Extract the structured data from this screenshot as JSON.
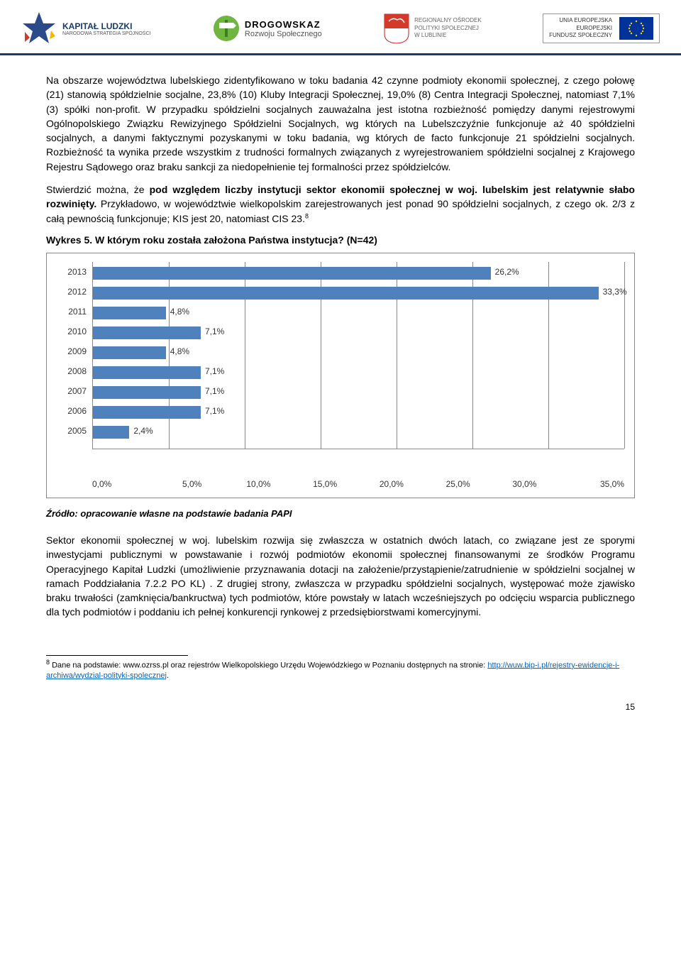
{
  "header": {
    "kapital_title": "KAPITAŁ LUDZKI",
    "kapital_sub": "NARODOWA STRATEGIA SPÓJNOŚCI",
    "drogowskaz_title": "DROGOWSKAZ",
    "drogowskaz_sub": "Rozwoju Społecznego",
    "regionalny_line1": "REGIONALNY OŚRODEK",
    "regionalny_line2": "POLITYKI SPOŁECZNEJ",
    "regionalny_line3": "W LUBLINIE",
    "eu_line1": "UNIA EUROPEJSKA",
    "eu_line2": "EUROPEJSKI",
    "eu_line3": "FUNDUSZ SPOŁECZNY"
  },
  "para1": "Na obszarze województwa lubelskiego zidentyfikowano w toku badania 42 czynne podmioty ekonomii społecznej, z czego połowę (21) stanowią spółdzielnie socjalne, 23,8% (10) Kluby Integracji Społecznej, 19,0% (8) Centra Integracji Społecznej, natomiast 7,1% (3) spółki non-profit. W przypadku spółdzielni socjalnych zauważalna jest istotna rozbieżność pomiędzy danymi rejestrowymi Ogólnopolskiego Związku Rewizyjnego Spółdzielni Socjalnych, wg których na Lubelszczyźnie funkcjonuje aż 40 spółdzielni socjalnych, a danymi faktycznymi pozyskanymi w toku badania, wg których de facto funkcjonuje 21 spółdzielni socjalnych. Rozbieżność ta wynika przede wszystkim z trudności formalnych związanych z wyrejestrowaniem spółdzielni socjalnej z Krajowego Rejestru Sądowego oraz braku sankcji za niedopełnienie tej formalności przez spółdzielców.",
  "para2_lead": "Stwierdzić można, że ",
  "para2_bold": "pod względem liczby instytucji sektor ekonomii społecznej w woj. lubelskim jest relatywnie słabo rozwinięty.",
  "para2_rest": " Przykładowo, w województwie wielkopolskim zarejestrowanych jest ponad 90 spółdzielni socjalnych, z czego ok. 2/3 z całą pewnością funkcjonuje; KIS jest 20, natomiast CIS 23.",
  "chart": {
    "title": "Wykres 5. W którym roku została założona Państwa instytucja? (N=42)",
    "type": "bar",
    "categories": [
      "2013",
      "2012",
      "2011",
      "2010",
      "2009",
      "2008",
      "2007",
      "2006",
      "2005"
    ],
    "values": [
      26.2,
      33.3,
      4.8,
      7.1,
      4.8,
      7.1,
      7.1,
      7.1,
      2.4
    ],
    "labels": [
      "26,2%",
      "33,3%",
      "4,8%",
      "7,1%",
      "4,8%",
      "7,1%",
      "7,1%",
      "7,1%",
      "2,4%"
    ],
    "bar_color": "#4f81bd",
    "xlim": [
      0,
      35
    ],
    "xtick_step": 5,
    "xticks": [
      "0,0%",
      "5,0%",
      "10,0%",
      "15,0%",
      "20,0%",
      "25,0%",
      "30,0%",
      "35,0%"
    ],
    "grid_color": "#888888",
    "background_color": "#ffffff",
    "label_fontsize": 12
  },
  "source": "Źródło: opracowanie własne na podstawie badania PAPI",
  "para3": "Sektor ekonomii społecznej w woj. lubelskim rozwija się zwłaszcza w ostatnich dwóch latach, co związane jest ze sporymi inwestycjami publicznymi w powstawanie i rozwój podmiotów ekonomii społecznej finansowanymi ze środków Programu Operacyjnego Kapitał Ludzki (umożliwienie przyznawania dotacji na założenie/przystąpienie/zatrudnienie w spółdzielni socjalnej w ramach Poddziałania 7.2.2 PO KL) . Z drugiej strony, zwłaszcza w przypadku spółdzielni socjalnych, występować może zjawisko braku trwałości (zamknięcia/bankructwa) tych podmiotów, które powstały w latach wcześniejszych po odcięciu wsparcia publicznego dla tych podmiotów i poddaniu ich pełnej konkurencji rynkowej z przedsiębiorstwami komercyjnymi.",
  "footnote_num": "8",
  "footnote_text": " Dane na podstawie: www.ozrss.pl oraz rejestrów Wielkopolskiego Urzędu Wojewódzkiego w Poznaniu dostępnych na stronie: ",
  "footnote_link": "http://wuw.bip-i.pl/rejestry-ewidencje-i-archiwa/wydzial-polityki-spolecznej",
  "page_number": "15"
}
